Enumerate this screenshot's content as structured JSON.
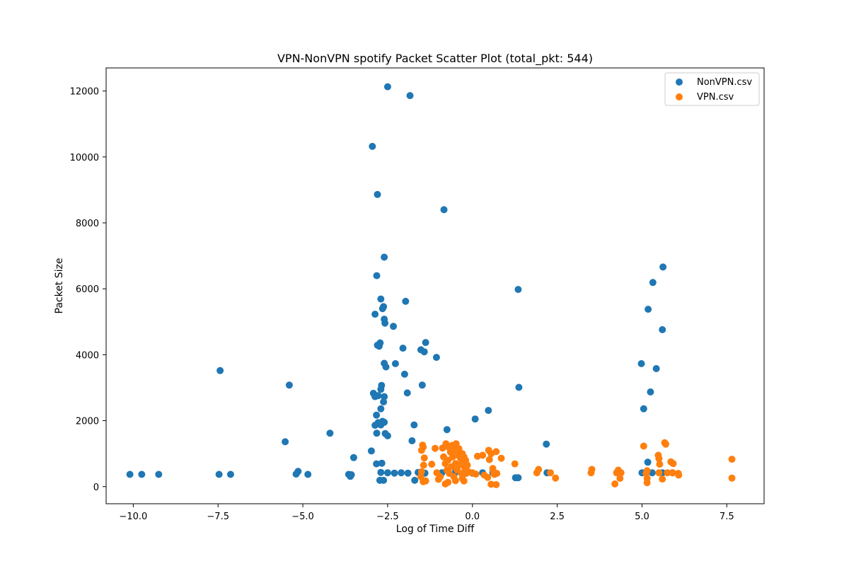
{
  "chart_data": {
    "type": "scatter",
    "title": "VPN-NonVPN spotify Packet Scatter Plot (total_pkt: 544)",
    "xlabel": "Log of Time Diff",
    "ylabel": "Packet Size",
    "xlim": [
      -10.8,
      8.6
    ],
    "ylim": [
      -520,
      12700
    ],
    "x_ticks": [
      -10.0,
      -7.5,
      -5.0,
      -2.5,
      0.0,
      2.5,
      5.0,
      7.5
    ],
    "x_tick_labels": [
      "−10.0",
      "−7.5",
      "−5.0",
      "−2.5",
      "0.0",
      "2.5",
      "5.0",
      "7.5"
    ],
    "y_ticks": [
      0,
      2000,
      4000,
      6000,
      8000,
      10000,
      12000
    ],
    "y_tick_labels": [
      "0",
      "2000",
      "4000",
      "6000",
      "8000",
      "10000",
      "12000"
    ],
    "grid": false,
    "legend_position": "top-right",
    "series": [
      {
        "name": "NonVPN.csv",
        "color": "#1f77b4",
        "points": [
          [
            -2.5,
            12130
          ],
          [
            -1.84,
            11860
          ],
          [
            -2.95,
            10320
          ],
          [
            -2.8,
            8860
          ],
          [
            -0.84,
            8400
          ],
          [
            -2.6,
            6960
          ],
          [
            -2.82,
            6400
          ],
          [
            -2.7,
            5690
          ],
          [
            -2.62,
            5460
          ],
          [
            -2.65,
            5400
          ],
          [
            -2.87,
            5230
          ],
          [
            -2.6,
            5080
          ],
          [
            -2.58,
            4960
          ],
          [
            -2.33,
            4860
          ],
          [
            -1.97,
            5620
          ],
          [
            -2.72,
            4360
          ],
          [
            -2.8,
            4290
          ],
          [
            -2.75,
            4260
          ],
          [
            -2.05,
            4200
          ],
          [
            -1.38,
            4370
          ],
          [
            -1.52,
            4150
          ],
          [
            -1.42,
            4090
          ],
          [
            -1.06,
            3920
          ],
          [
            -2.6,
            3740
          ],
          [
            -2.55,
            3630
          ],
          [
            -2.27,
            3730
          ],
          [
            -2.0,
            3410
          ],
          [
            -7.44,
            3520
          ],
          [
            -5.4,
            3080
          ],
          [
            -2.68,
            3070
          ],
          [
            -1.48,
            3080
          ],
          [
            -2.7,
            2950
          ],
          [
            -2.92,
            2830
          ],
          [
            -2.87,
            2730
          ],
          [
            -2.78,
            2760
          ],
          [
            -2.6,
            2730
          ],
          [
            -2.62,
            2570
          ],
          [
            -1.92,
            2840
          ],
          [
            -2.7,
            2360
          ],
          [
            -2.83,
            2170
          ],
          [
            -2.65,
            1980
          ],
          [
            -2.6,
            1950
          ],
          [
            -2.78,
            1940
          ],
          [
            -2.7,
            1870
          ],
          [
            -2.87,
            1860
          ],
          [
            -1.72,
            1870
          ],
          [
            -2.82,
            1620
          ],
          [
            -2.57,
            1610
          ],
          [
            -2.5,
            1540
          ],
          [
            -4.2,
            1620
          ],
          [
            -0.75,
            1730
          ],
          [
            0.08,
            2050
          ],
          [
            0.47,
            2310
          ],
          [
            -1.78,
            1390
          ],
          [
            -2.98,
            1080
          ],
          [
            -5.52,
            1360
          ],
          [
            -3.5,
            880
          ],
          [
            -2.83,
            690
          ],
          [
            -2.67,
            710
          ],
          [
            -2.7,
            430
          ],
          [
            -2.5,
            420
          ],
          [
            -2.3,
            410
          ],
          [
            -2.1,
            420
          ],
          [
            -1.9,
            410
          ],
          [
            -1.6,
            430
          ],
          [
            -1.4,
            410
          ],
          [
            -0.9,
            420
          ],
          [
            -0.5,
            430
          ],
          [
            0.0,
            410
          ],
          [
            0.3,
            420
          ],
          [
            0.6,
            430
          ],
          [
            -10.1,
            370
          ],
          [
            -9.75,
            370
          ],
          [
            -9.25,
            370
          ],
          [
            -7.47,
            370
          ],
          [
            -7.13,
            370
          ],
          [
            -5.14,
            460
          ],
          [
            -5.2,
            380
          ],
          [
            -4.85,
            370
          ],
          [
            -3.65,
            370
          ],
          [
            -3.57,
            360
          ],
          [
            -3.6,
            310
          ],
          [
            -2.73,
            190
          ],
          [
            -2.62,
            190
          ],
          [
            -1.7,
            190
          ],
          [
            1.35,
            5980
          ],
          [
            1.37,
            3010
          ],
          [
            2.18,
            1290
          ],
          [
            2.2,
            420
          ],
          [
            1.27,
            270
          ],
          [
            1.35,
            270
          ],
          [
            5.62,
            6660
          ],
          [
            5.32,
            6190
          ],
          [
            5.18,
            5380
          ],
          [
            5.6,
            4760
          ],
          [
            4.98,
            3730
          ],
          [
            5.42,
            3580
          ],
          [
            5.25,
            2870
          ],
          [
            5.05,
            2360
          ],
          [
            5.17,
            740
          ],
          [
            5.0,
            420
          ],
          [
            5.3,
            420
          ],
          [
            5.6,
            420
          ],
          [
            5.9,
            420
          ]
        ]
      },
      {
        "name": "VPN.csv",
        "color": "#ff7f0e",
        "points": [
          [
            -1.45,
            1200
          ],
          [
            -1.47,
            1260
          ],
          [
            -1.5,
            1100
          ],
          [
            -1.42,
            870
          ],
          [
            -1.44,
            650
          ],
          [
            -1.5,
            450
          ],
          [
            -1.52,
            300
          ],
          [
            -1.45,
            150
          ],
          [
            -1.38,
            170
          ],
          [
            -1.2,
            680
          ],
          [
            -1.1,
            1160
          ],
          [
            -1.05,
            420
          ],
          [
            -1.0,
            220
          ],
          [
            -0.95,
            300
          ],
          [
            -0.88,
            1170
          ],
          [
            -0.85,
            900
          ],
          [
            -0.8,
            700
          ],
          [
            -0.78,
            1300
          ],
          [
            -0.75,
            500
          ],
          [
            -0.7,
            1200
          ],
          [
            -0.72,
            800
          ],
          [
            -0.68,
            400
          ],
          [
            -0.65,
            1050
          ],
          [
            -0.62,
            600
          ],
          [
            -0.6,
            1250
          ],
          [
            -0.58,
            900
          ],
          [
            -0.55,
            300
          ],
          [
            -0.52,
            1100
          ],
          [
            -0.5,
            700
          ],
          [
            -0.48,
            1300
          ],
          [
            -0.45,
            500
          ],
          [
            -0.42,
            950
          ],
          [
            -0.4,
            1150
          ],
          [
            -0.38,
            650
          ],
          [
            -0.35,
            850
          ],
          [
            -0.32,
            400
          ],
          [
            -0.3,
            1000
          ],
          [
            -0.28,
            700
          ],
          [
            -0.25,
            900
          ],
          [
            -0.22,
            550
          ],
          [
            -0.2,
            800
          ],
          [
            -0.18,
            400
          ],
          [
            -0.15,
            650
          ],
          [
            -0.12,
            450
          ],
          [
            -0.8,
            80
          ],
          [
            -0.72,
            130
          ],
          [
            -0.5,
            180
          ],
          [
            -0.3,
            250
          ],
          [
            -0.25,
            170
          ],
          [
            0.0,
            420
          ],
          [
            0.1,
            380
          ],
          [
            0.15,
            920
          ],
          [
            0.3,
            950
          ],
          [
            0.35,
            350
          ],
          [
            0.45,
            280
          ],
          [
            0.48,
            1100
          ],
          [
            0.5,
            820
          ],
          [
            0.55,
            1000
          ],
          [
            0.55,
            70
          ],
          [
            0.6,
            550
          ],
          [
            0.62,
            450
          ],
          [
            0.65,
            370
          ],
          [
            0.7,
            1060
          ],
          [
            0.72,
            400
          ],
          [
            0.7,
            60
          ],
          [
            0.85,
            860
          ],
          [
            1.25,
            690
          ],
          [
            1.9,
            420
          ],
          [
            1.95,
            520
          ],
          [
            2.3,
            420
          ],
          [
            2.45,
            260
          ],
          [
            3.5,
            420
          ],
          [
            3.52,
            520
          ],
          [
            4.2,
            80
          ],
          [
            4.25,
            420
          ],
          [
            4.3,
            500
          ],
          [
            4.35,
            250
          ],
          [
            4.38,
            420
          ],
          [
            5.05,
            1230
          ],
          [
            5.12,
            400
          ],
          [
            5.15,
            480
          ],
          [
            5.15,
            250
          ],
          [
            5.15,
            120
          ],
          [
            5.48,
            950
          ],
          [
            5.5,
            850
          ],
          [
            5.52,
            680
          ],
          [
            5.5,
            420
          ],
          [
            5.6,
            230
          ],
          [
            5.67,
            1330
          ],
          [
            5.7,
            1290
          ],
          [
            5.75,
            420
          ],
          [
            5.85,
            750
          ],
          [
            5.92,
            700
          ],
          [
            5.9,
            420
          ],
          [
            6.07,
            400
          ],
          [
            6.08,
            350
          ],
          [
            7.65,
            830
          ],
          [
            7.65,
            260
          ]
        ]
      }
    ]
  }
}
